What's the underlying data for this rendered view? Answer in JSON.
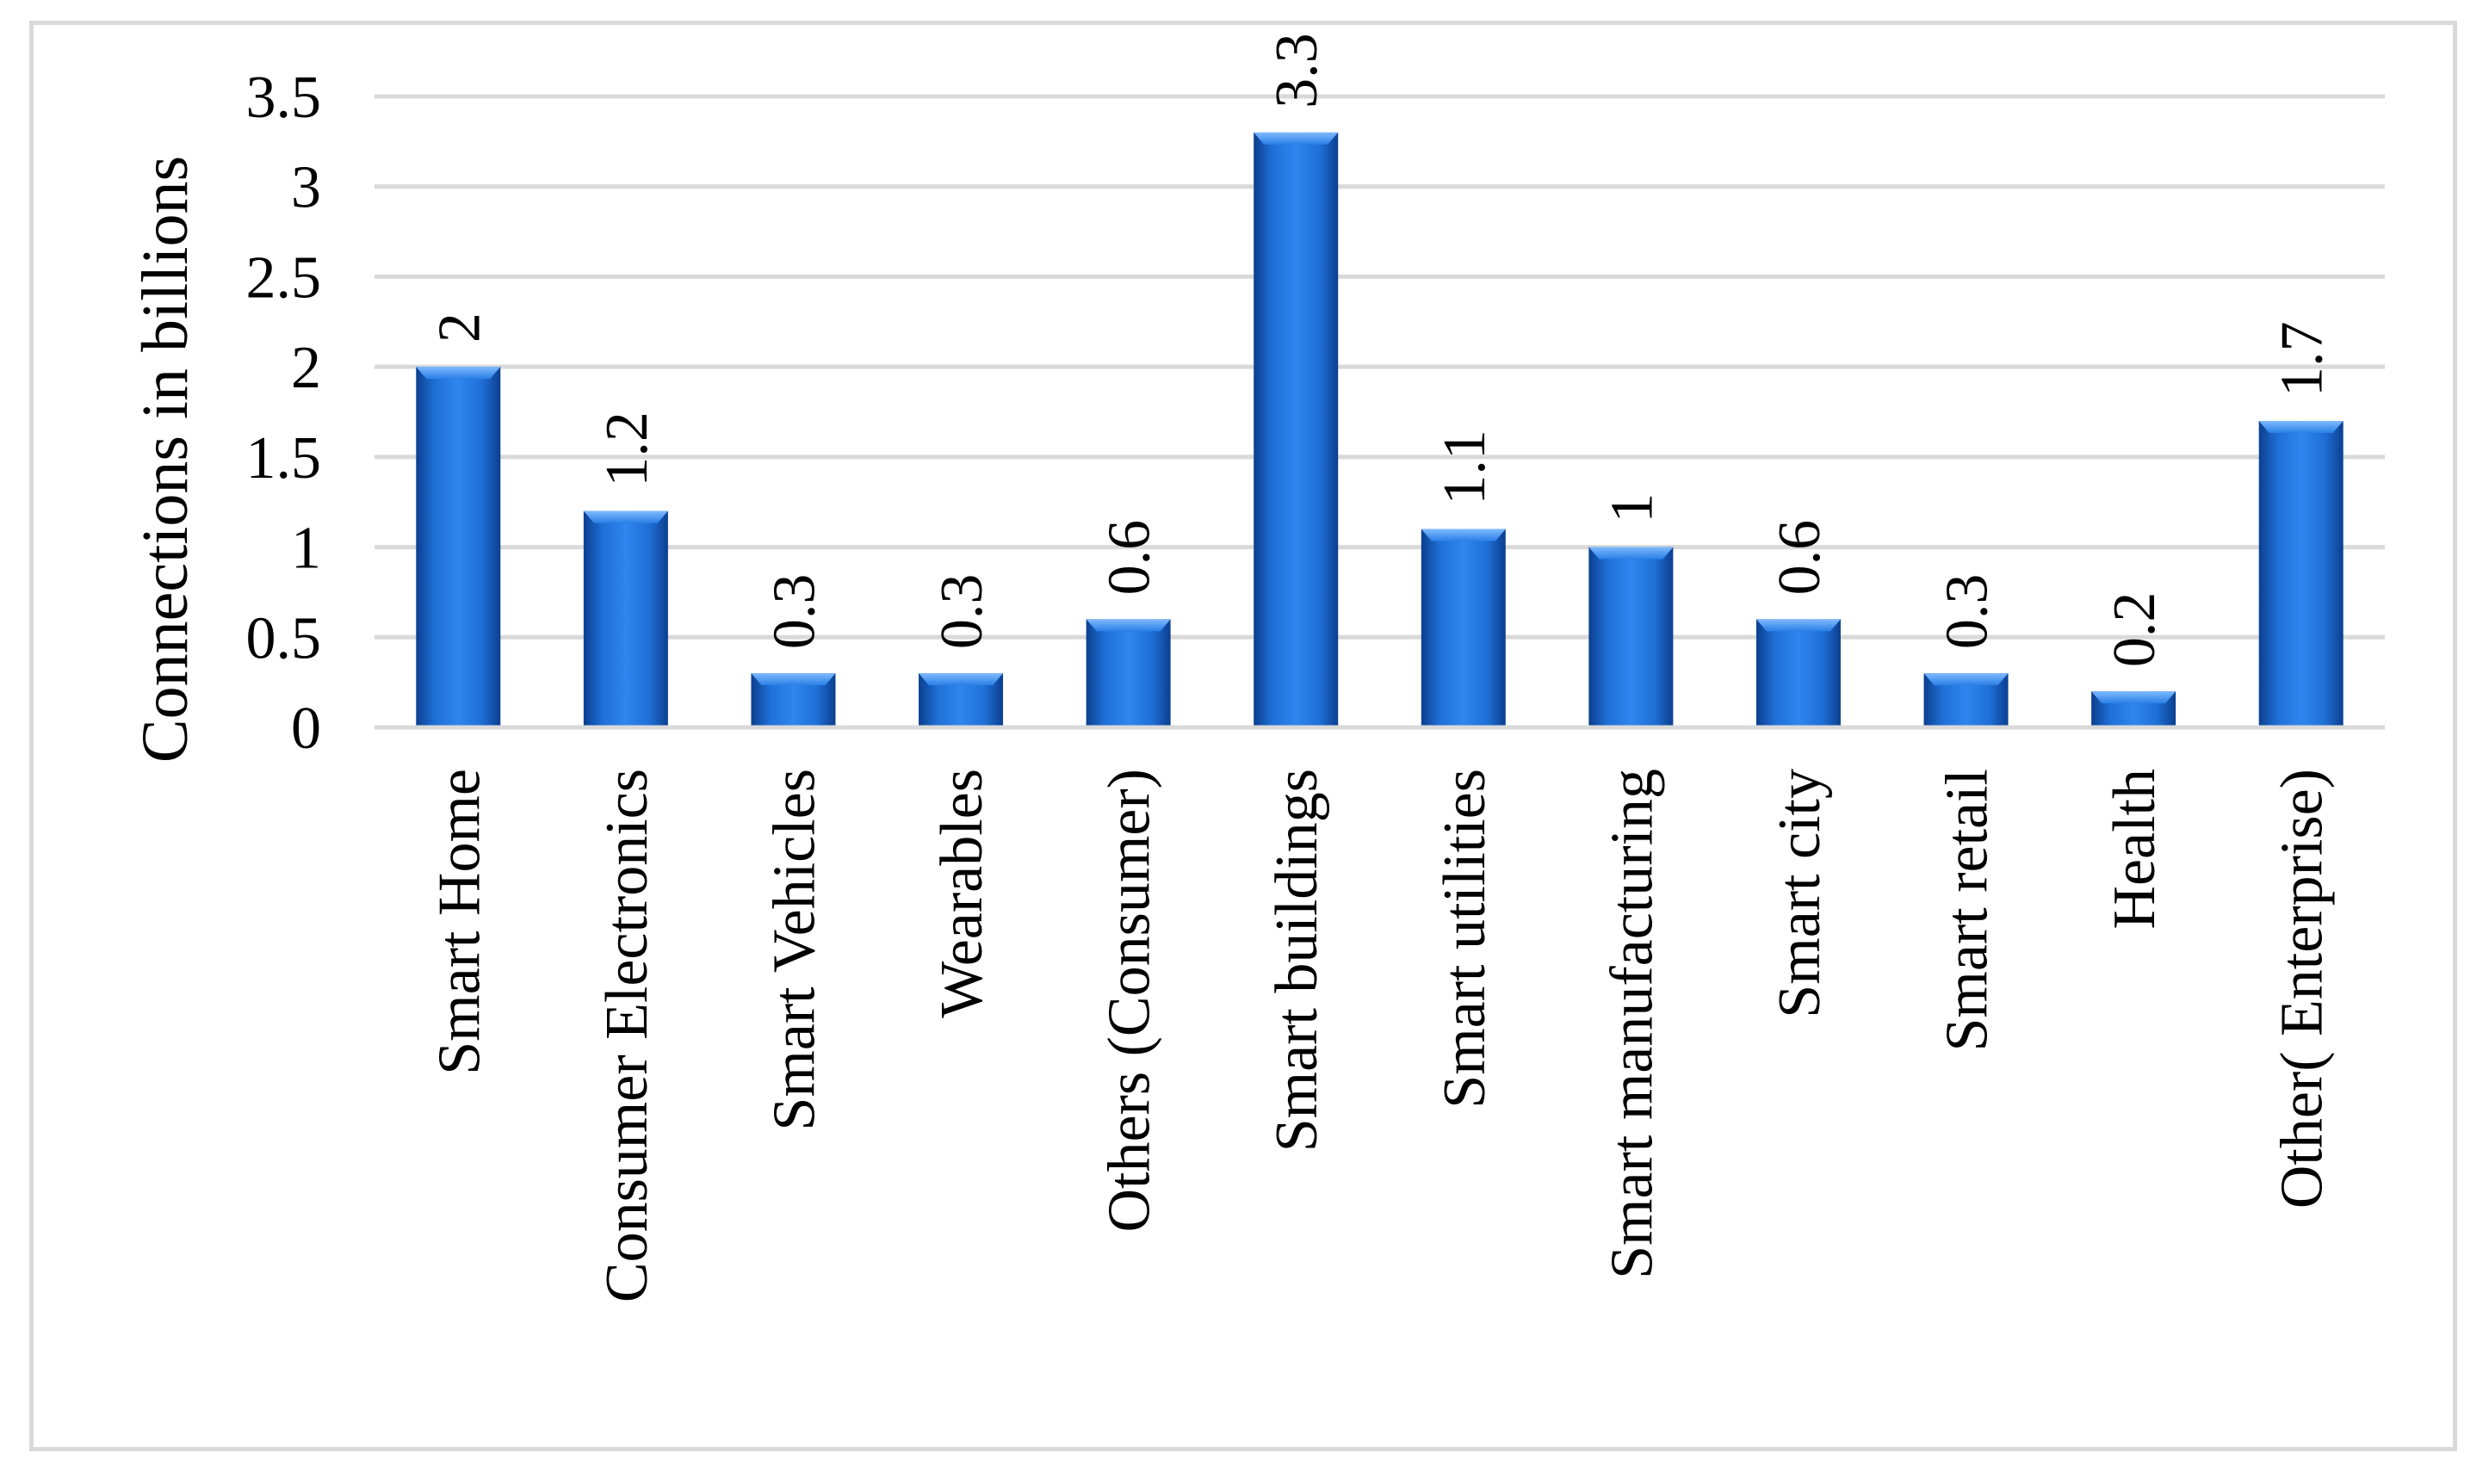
{
  "chart_data": {
    "type": "bar",
    "title": "",
    "xlabel": "",
    "ylabel": "Connections in billions",
    "ylim": [
      0,
      3.5
    ],
    "yticks": [
      "0",
      "0.5",
      "1",
      "1.5",
      "2",
      "2.5",
      "3",
      "3.5"
    ],
    "grid": true,
    "legend": "none",
    "bar_color": "#1f6fd6",
    "categories": [
      "Smart Home",
      "Consumer Electronics",
      "Smart Vehicles",
      "Wearables",
      "Others (Consumer)",
      "Smart buildings",
      "Smart utilities",
      "Smart manufacturing",
      "Smart city",
      "Smart retail",
      "Health",
      "Other( Enterprise)"
    ],
    "values": [
      2,
      1.2,
      0.3,
      0.3,
      0.6,
      3.3,
      1.1,
      1,
      0.6,
      0.3,
      0.2,
      1.7
    ],
    "data_labels": [
      "2",
      "1.2",
      "0.3",
      "0.3",
      "0.6",
      "3.3",
      "1.1",
      "1",
      "0.6",
      "0.3",
      "0.2",
      "1.7"
    ]
  }
}
